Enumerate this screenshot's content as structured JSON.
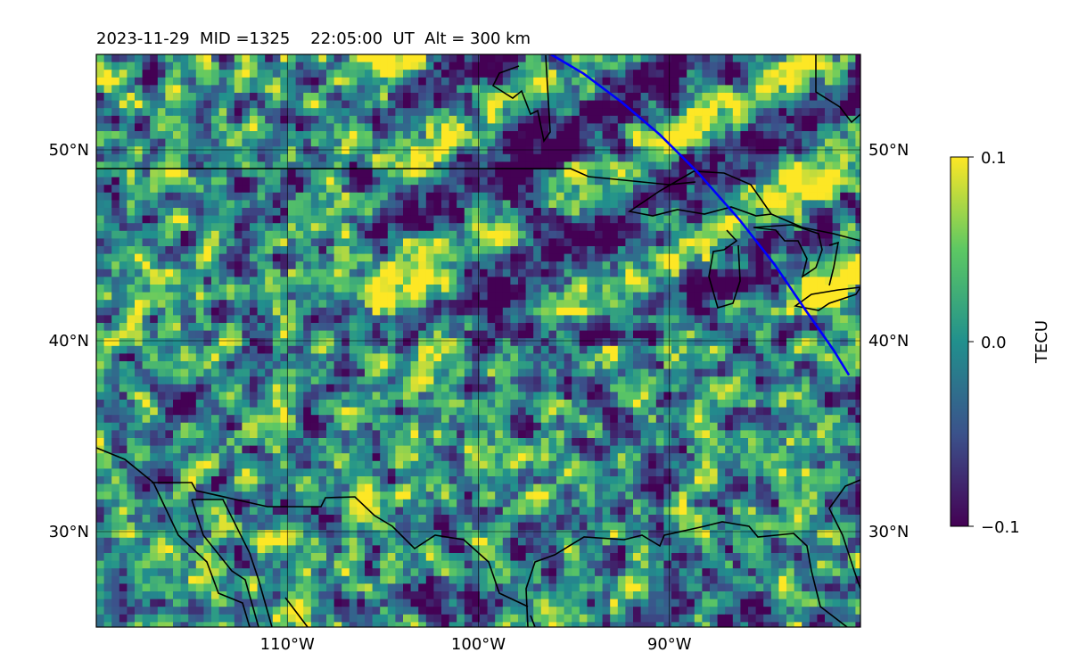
{
  "chart_data": {
    "type": "heatmap",
    "title": "2023-11-29  MID =1325    22:05:00  UT  Alt = 300 km",
    "map": {
      "lon_range": [
        -120,
        -80
      ],
      "lat_range": [
        25,
        55
      ],
      "lon_ticks": [
        {
          "value": -110,
          "label": "110°W"
        },
        {
          "value": -100,
          "label": "100°W"
        },
        {
          "value": -90,
          "label": "90°W"
        }
      ],
      "lat_ticks": [
        {
          "value": 50,
          "label": "50°N"
        },
        {
          "value": 40,
          "label": "40°N"
        },
        {
          "value": 30,
          "label": "30°N"
        }
      ],
      "grid": true,
      "colormap": "viridis",
      "colormap_stops": [
        "#440154",
        "#3b528b",
        "#21908d",
        "#5dc863",
        "#fde725"
      ],
      "track_color": "#0000ff",
      "track": [
        [
          -96.2,
          55
        ],
        [
          -94.5,
          54
        ],
        [
          -92.5,
          52.5
        ],
        [
          -90.5,
          50.8
        ],
        [
          -88.5,
          48.8
        ],
        [
          -86.3,
          46.3
        ],
        [
          -84.5,
          44
        ],
        [
          -82.8,
          41.5
        ],
        [
          -81.4,
          39.5
        ],
        [
          -80.6,
          38.2
        ]
      ]
    },
    "colorbar": {
      "label": "TECU",
      "min": -0.1,
      "max": 0.1,
      "ticks": [
        {
          "value": 0.1,
          "label": "0.1"
        },
        {
          "value": 0.0,
          "label": "0.0"
        },
        {
          "value": -0.1,
          "label": "−0.1"
        }
      ]
    }
  }
}
